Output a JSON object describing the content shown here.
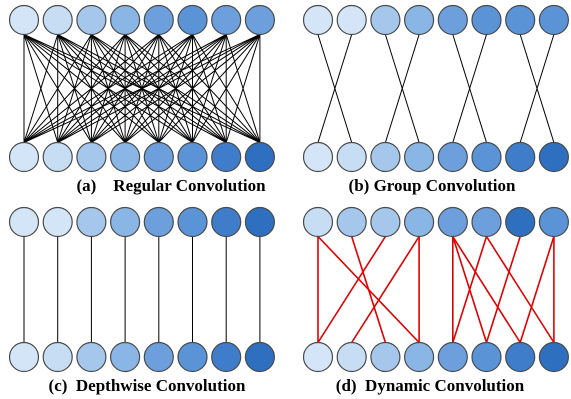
{
  "colors": {
    "node_fill": [
      "#d3e5f6",
      "#c6ddf3",
      "#a6c7ec",
      "#8ab6e6",
      "#6c9fdc",
      "#5a93d6",
      "#3f7dcb",
      "#2f6fc0"
    ],
    "node_stroke": "#4a4a4a",
    "edge_black": "#000000",
    "edge_red": "#e00000"
  },
  "panels": [
    {
      "id": "regular",
      "caption": "(a)    Regular Convolution",
      "connection": "full",
      "edge_color": "#000000",
      "top_shade": [
        0,
        1,
        2,
        3,
        4,
        5,
        4,
        4
      ],
      "bottom_shade": [
        0,
        1,
        2,
        3,
        4,
        5,
        6,
        7
      ]
    },
    {
      "id": "group",
      "caption": "(b) Group Convolution",
      "connection": "group",
      "edge_color": "#000000",
      "top_shade": [
        0,
        0,
        2,
        3,
        4,
        5,
        5,
        5
      ],
      "bottom_shade": [
        0,
        1,
        2,
        3,
        4,
        5,
        6,
        7
      ]
    },
    {
      "id": "depthwise",
      "caption": "(c)  Depthwise Convolution",
      "connection": "depthwise",
      "edge_color": "#000000",
      "top_shade": [
        0,
        0,
        2,
        3,
        4,
        5,
        6,
        7
      ],
      "bottom_shade": [
        0,
        1,
        2,
        3,
        4,
        5,
        6,
        7
      ]
    },
    {
      "id": "dynamic",
      "caption": "(d)  Dynamic Convolution",
      "connection": "dynamic",
      "edge_color": "#e00000",
      "top_shade": [
        1,
        2,
        2,
        3,
        4,
        4,
        7,
        5
      ],
      "bottom_shade": [
        0,
        1,
        2,
        3,
        4,
        5,
        6,
        7
      ]
    }
  ]
}
